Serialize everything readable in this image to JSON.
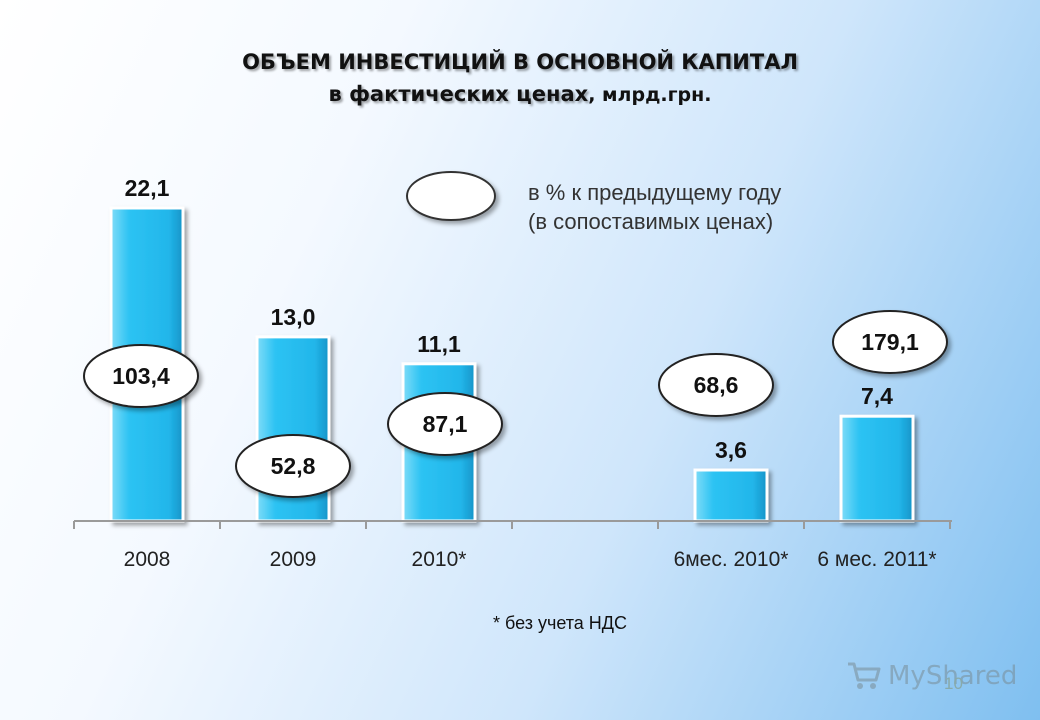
{
  "title": {
    "main": "ОБЪЕМ ИНВЕСТИЦИЙ В ОСНОВНОЙ КАПИТАЛ",
    "sub_bold": "в фактических ценах",
    "sub_rest": ", млрд.грн."
  },
  "legend": {
    "line1": "в % к предыдущему году",
    "line2": "(в сопоставимых ценах)"
  },
  "footnote": "* без учета НДС",
  "page_number": "10",
  "watermark": "MyShared",
  "colors": {
    "bar": "#2dc3f3",
    "bar_light": "#9fe6fb",
    "bar_dark": "#0f8fc2"
  },
  "chart_data": {
    "type": "bar",
    "title": "ОБЪЕМ ИНВЕСТИЦИЙ В ОСНОВНОЙ КАПИТАЛ в фактических ценах, млрд.грн.",
    "categories": [
      "2008",
      "2009",
      "2010*",
      "",
      "6мес. 2010*",
      "6 мес. 2011*"
    ],
    "values": [
      22.1,
      13.0,
      11.1,
      null,
      3.6,
      7.4
    ],
    "value_labels": [
      "22,1",
      "13,0",
      "11,1",
      "",
      "3,6",
      "7,4"
    ],
    "ellipse_labels": [
      "103,4",
      "52,8",
      "87,1",
      "",
      "68,6",
      "179,1"
    ],
    "legend_label": "в % к предыдущему году (в сопоставимых ценах)",
    "ylim": [
      0,
      22.1
    ],
    "grid": false
  }
}
